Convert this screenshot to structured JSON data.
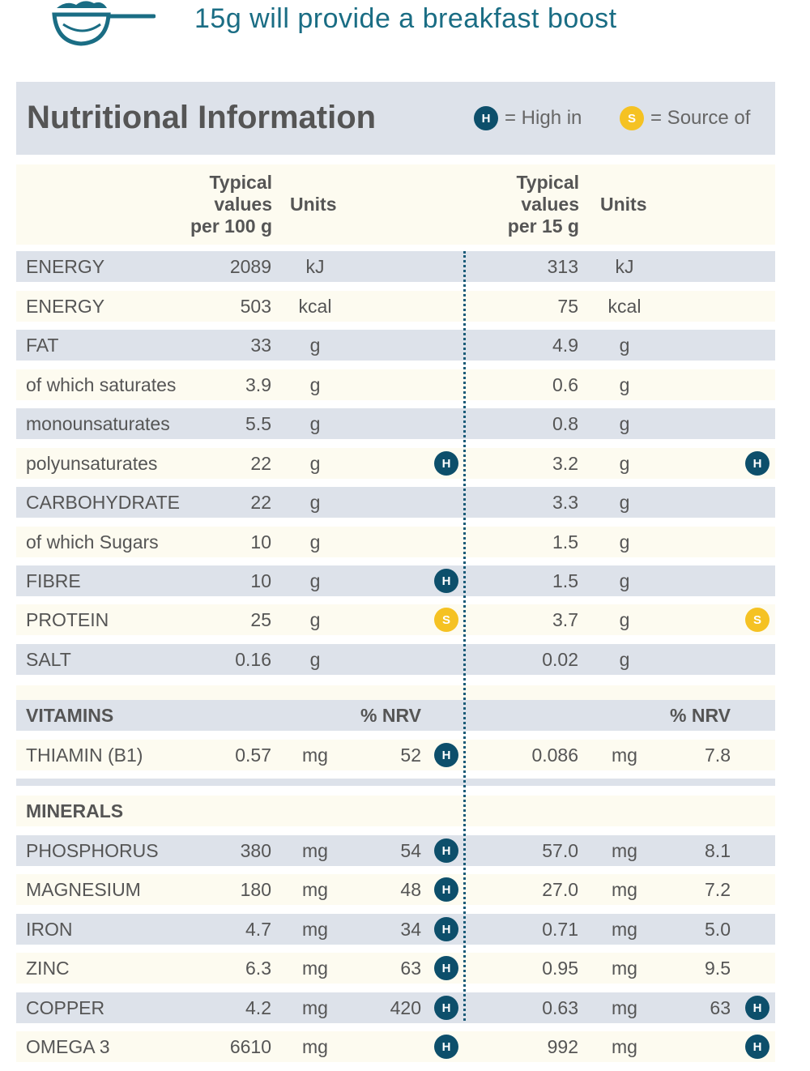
{
  "header": {
    "tagline": "15g will provide a breakfast boost",
    "icon": "scoop-icon"
  },
  "title": "Nutritional Information",
  "legend": {
    "high": {
      "badge": "H",
      "label": "= High in"
    },
    "source": {
      "badge": "S",
      "label": "= Source of"
    }
  },
  "colors": {
    "accent": "#1a6d84",
    "high_badge": "#0d4f6b",
    "source_badge": "#f5c223",
    "row_blue": "#dde2ea",
    "row_cream": "#fdfbf0"
  },
  "columns": {
    "per100_l1": "Typical",
    "per100_l2": "values",
    "per100_l3": "per 100 g",
    "units1": "Units",
    "per15_l1": "Typical",
    "per15_l2": "values",
    "per15_l3": "per 15 g",
    "units2": "Units"
  },
  "nutrients": [
    {
      "name": "ENERGY",
      "v100": "2089",
      "u100": "kJ",
      "v15": "313",
      "u15": "kJ"
    },
    {
      "name": "ENERGY",
      "v100": "503",
      "u100": "kcal",
      "v15": "75",
      "u15": "kcal"
    },
    {
      "name": "FAT",
      "v100": "33",
      "u100": "g",
      "v15": "4.9",
      "u15": "g"
    },
    {
      "name": "of which saturates",
      "v100": "3.9",
      "u100": "g",
      "v15": "0.6",
      "u15": "g"
    },
    {
      "name": "monounsaturates",
      "v100": "5.5",
      "u100": "g",
      "v15": "0.8",
      "u15": "g"
    },
    {
      "name": "polyunsaturates",
      "v100": "22",
      "u100": "g",
      "b100": "H",
      "v15": "3.2",
      "u15": "g",
      "b15": "H"
    },
    {
      "name": "CARBOHYDRATE",
      "v100": "22",
      "u100": "g",
      "v15": "3.3",
      "u15": "g"
    },
    {
      "name": "of which Sugars",
      "v100": "10",
      "u100": "g",
      "v15": "1.5",
      "u15": "g"
    },
    {
      "name": "FIBRE",
      "v100": "10",
      "u100": "g",
      "b100": "H",
      "v15": "1.5",
      "u15": "g"
    },
    {
      "name": "PROTEIN",
      "v100": "25",
      "u100": "g",
      "b100": "S",
      "v15": "3.7",
      "u15": "g",
      "b15": "S"
    },
    {
      "name": "SALT",
      "v100": "0.16",
      "u100": "g",
      "v15": "0.02",
      "u15": "g"
    }
  ],
  "vitamins": {
    "title": "VITAMINS",
    "nrv1": "% NRV",
    "nrv2": "% NRV",
    "rows": [
      {
        "name": "THIAMIN (B1)",
        "v100": "0.57",
        "u100": "mg",
        "n100": "52",
        "b100": "H",
        "v15": "0.086",
        "u15": "mg",
        "n15": "7.8"
      }
    ]
  },
  "minerals": {
    "title": "MINERALS",
    "rows": [
      {
        "name": "PHOSPHORUS",
        "v100": "380",
        "u100": "mg",
        "n100": "54",
        "b100": "H",
        "v15": "57.0",
        "u15": "mg",
        "n15": "8.1"
      },
      {
        "name": "MAGNESIUM",
        "v100": "180",
        "u100": "mg",
        "n100": "48",
        "b100": "H",
        "v15": "27.0",
        "u15": "mg",
        "n15": "7.2"
      },
      {
        "name": "IRON",
        "v100": "4.7",
        "u100": "mg",
        "n100": "34",
        "b100": "H",
        "v15": "0.71",
        "u15": "mg",
        "n15": "5.0"
      },
      {
        "name": "ZINC",
        "v100": "6.3",
        "u100": "mg",
        "n100": "63",
        "b100": "H",
        "v15": "0.95",
        "u15": "mg",
        "n15": "9.5"
      },
      {
        "name": "COPPER",
        "v100": "4.2",
        "u100": "mg",
        "n100": "420",
        "b100": "H",
        "v15": "0.63",
        "u15": "mg",
        "n15": "63",
        "b15": "H"
      },
      {
        "name": "OMEGA 3",
        "v100": "6610",
        "u100": "mg",
        "b100": "H",
        "v15": "992",
        "u15": "mg",
        "b15": "H"
      }
    ]
  }
}
